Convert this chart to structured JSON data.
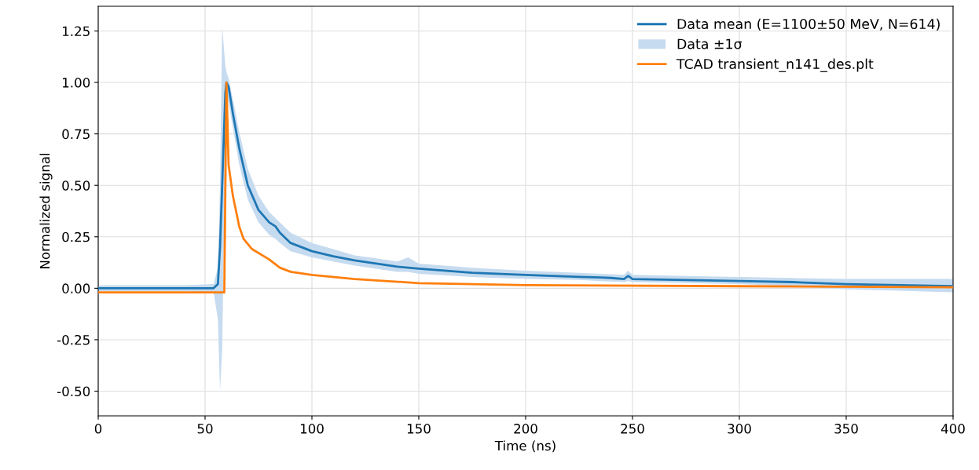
{
  "chart_data": {
    "type": "line",
    "xlabel": "Time (ns)",
    "ylabel": "Normalized signal",
    "xlim": [
      0,
      400
    ],
    "ylim": [
      -0.62,
      1.37
    ],
    "xticks": [
      0,
      50,
      100,
      150,
      200,
      250,
      300,
      350,
      400
    ],
    "yticks": [
      {
        "value": -0.5,
        "label": "-0.50"
      },
      -0.25,
      {
        "value": 0,
        "label": "0.00"
      },
      0.25,
      {
        "value": 0.5,
        "label": "0.50"
      },
      0.75,
      {
        "value": 1,
        "label": "1.00"
      },
      1.25
    ],
    "grid": true,
    "legend": "top right",
    "series": [
      {
        "name": "Data mean (E=1100±50 MeV, N=614)",
        "color": "#1f77b4",
        "x": [
          0,
          20,
          40,
          54,
          56,
          57,
          58,
          59.5,
          60,
          61,
          63,
          66,
          70,
          75,
          80,
          83,
          85,
          90,
          100,
          110,
          120,
          130,
          140,
          145,
          150,
          175,
          200,
          225,
          235,
          240,
          246,
          248,
          250,
          275,
          300,
          325,
          350,
          375,
          400
        ],
        "values": [
          0.0,
          0.0,
          0.0,
          0.0,
          0.02,
          0.2,
          0.5,
          0.95,
          1.0,
          0.98,
          0.85,
          0.68,
          0.5,
          0.38,
          0.32,
          0.3,
          0.27,
          0.22,
          0.18,
          0.155,
          0.135,
          0.12,
          0.105,
          0.1,
          0.095,
          0.075,
          0.065,
          0.055,
          0.052,
          0.05,
          0.045,
          0.06,
          0.045,
          0.04,
          0.035,
          0.03,
          0.02,
          0.015,
          0.01
        ],
        "lower": [
          -0.015,
          -0.015,
          -0.015,
          -0.02,
          -0.15,
          -0.5,
          -0.3,
          0.7,
          0.95,
          0.9,
          0.78,
          0.6,
          0.43,
          0.32,
          0.26,
          0.24,
          0.22,
          0.18,
          0.15,
          0.13,
          0.11,
          0.095,
          0.08,
          0.08,
          0.07,
          0.055,
          0.045,
          0.04,
          0.035,
          0.033,
          0.03,
          0.035,
          0.03,
          0.025,
          0.02,
          0.01,
          -0.005,
          -0.012,
          -0.02
        ],
        "upper": [
          0.015,
          0.015,
          0.015,
          0.02,
          0.1,
          0.5,
          1.27,
          1.08,
          1.05,
          1.02,
          0.92,
          0.76,
          0.58,
          0.45,
          0.37,
          0.34,
          0.32,
          0.27,
          0.22,
          0.19,
          0.16,
          0.145,
          0.13,
          0.15,
          0.12,
          0.1,
          0.085,
          0.075,
          0.07,
          0.068,
          0.065,
          0.085,
          0.065,
          0.06,
          0.055,
          0.05,
          0.045,
          0.045,
          0.045
        ]
      },
      {
        "name": "Data ±1σ",
        "type": "area",
        "color": "#c6dbef"
      },
      {
        "name": "TCAD transient_n141_des.plt",
        "color": "#ff7f0e",
        "x": [
          0,
          59,
          60,
          61,
          63,
          66,
          68,
          72,
          80,
          85,
          90,
          100,
          120,
          150,
          200,
          300,
          400
        ],
        "values": [
          -0.02,
          -0.02,
          1.0,
          0.6,
          0.45,
          0.3,
          0.24,
          0.19,
          0.14,
          0.1,
          0.08,
          0.065,
          0.045,
          0.025,
          0.015,
          0.01,
          0.005
        ]
      }
    ]
  }
}
